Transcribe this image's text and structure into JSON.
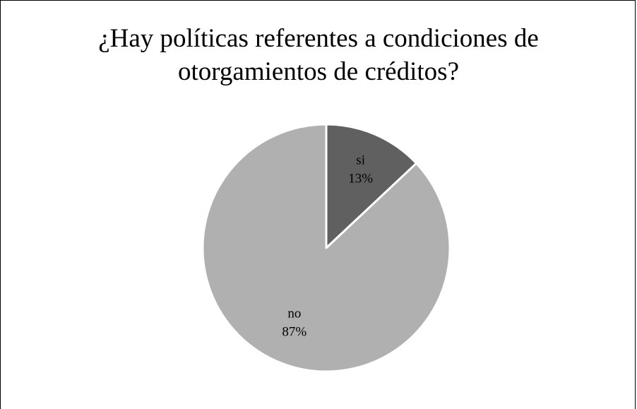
{
  "chart_data": {
    "type": "pie",
    "title_lines": [
      "¿Hay políticas referentes a condiciones de",
      "otorgamientos de créditos?"
    ],
    "slices": [
      {
        "label": "si",
        "value": 13,
        "value_label": "13%",
        "color": "#606060"
      },
      {
        "label": "no",
        "value": 87,
        "value_label": "87%",
        "color": "#b0b0b0"
      }
    ],
    "legend": "none"
  }
}
